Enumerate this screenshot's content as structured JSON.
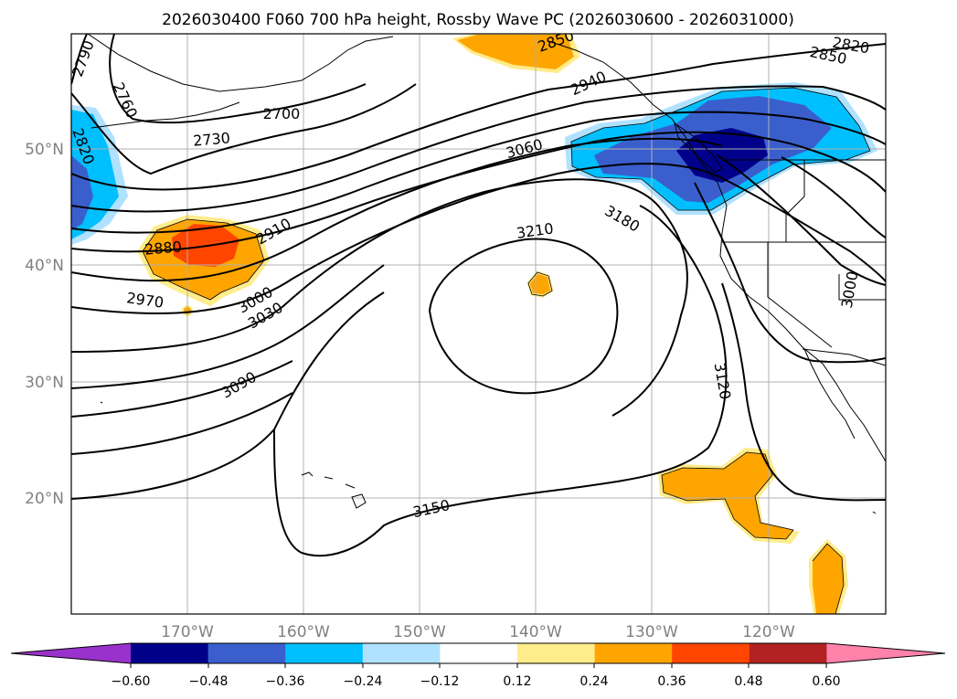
{
  "title": "2026030400 F060 700 hPa height, Rossby Wave PC (2026030600 - 2026031000)",
  "lat_labels": [
    "50°N",
    "40°N",
    "30°N",
    "20°N"
  ],
  "lon_labels": [
    "170°W",
    "160°W",
    "150°W",
    "140°W",
    "130°W",
    "120°W"
  ],
  "colorbar": {
    "colors": [
      "#9932cc",
      "#00008b",
      "#3a5fcd",
      "#00bfff",
      "#b0e2ff",
      "#ffffff",
      "#ffec8b",
      "#ffa500",
      "#ff4500",
      "#b22222",
      "#ff82ab"
    ],
    "tick_labels": [
      "−0.60",
      "−0.48",
      "−0.36",
      "−0.24",
      "−0.12",
      "0.12",
      "0.24",
      "0.36",
      "0.48",
      "0.60"
    ]
  },
  "contour_labels": {
    "c2790": "2790",
    "c2760": "2760",
    "c2820w": "2820",
    "c2700": "2700",
    "c2730": "2730",
    "c2850n": "2850",
    "c2940": "2940",
    "c2820e": "2820",
    "c2850e": "2850",
    "c3060": "3060",
    "c2910": "2910",
    "c2880": "2880",
    "c3210": "3210",
    "c3180": "3180",
    "c2970": "2970",
    "c3000w": "3000",
    "c3030": "3030",
    "c3000e": "3000",
    "c3090": "3090",
    "c3120": "3120",
    "c3150": "3150"
  }
}
